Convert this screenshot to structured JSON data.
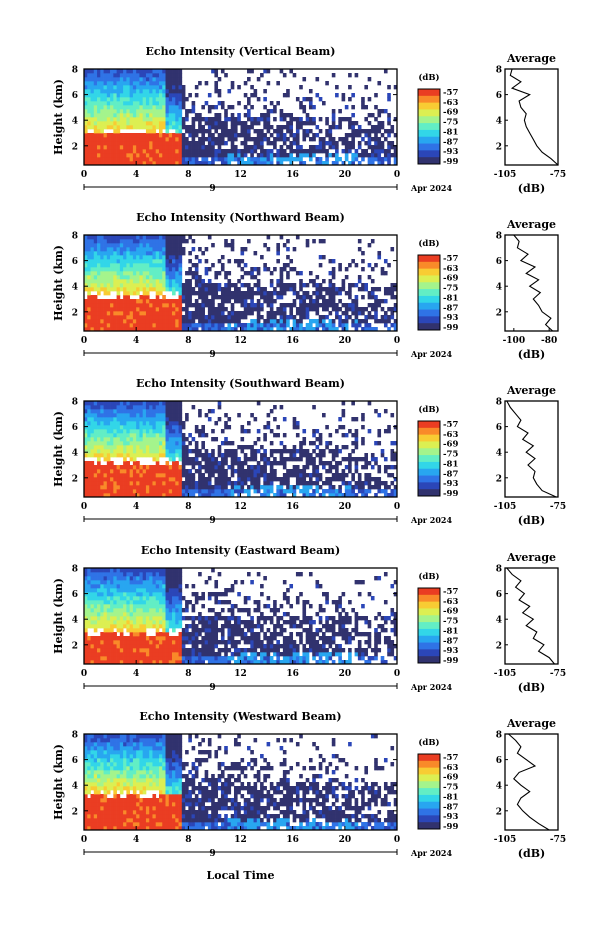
{
  "figure": {
    "x_axis_label": "Local Time",
    "date_label": "Apr 2024",
    "day_label": "9",
    "x_ticks": [
      "0",
      "4",
      "8",
      "12",
      "16",
      "20",
      "0"
    ],
    "y_label": "Height (km)",
    "y_ticks": [
      "2",
      "4",
      "6",
      "8"
    ],
    "colorbar_unit": "(dB)",
    "colorbar_ticks": [
      "-57",
      "-63",
      "-69",
      "-75",
      "-81",
      "-87",
      "-93",
      "-99"
    ],
    "average_title": "Average",
    "average_xlabel": "(dB)"
  },
  "colors": {
    "colormap": [
      "#31326e",
      "#2b46b8",
      "#2f73e6",
      "#28a6f0",
      "#32d6e8",
      "#62eec5",
      "#a4f48c",
      "#dcef52",
      "#f8cc33",
      "#f98a29",
      "#ea3d22"
    ],
    "profile_line": "#000000",
    "missing": "#ffffff"
  },
  "chart_data": [
    {
      "type": "heatmap",
      "title": "Echo Intensity (Vertical Beam)",
      "xlabel": "",
      "ylabel": "Height (km)",
      "xlim": [
        0,
        24
      ],
      "ylim": [
        0.5,
        8
      ],
      "z_range_dB": [
        -99,
        -57
      ],
      "high_echo_end_hour": 7.5,
      "melting_layer_km": 3.1,
      "average_profile": {
        "title": "Average",
        "xlabel": "(dB)",
        "xlim": [
          -105,
          -75
        ],
        "x_ticks": [
          "-105",
          "-75"
        ],
        "height_km": [
          0.5,
          1.0,
          1.5,
          2.0,
          2.5,
          3.0,
          3.5,
          4.0,
          4.5,
          5.0,
          5.5,
          6.0,
          6.5,
          7.0,
          7.5,
          8.0
        ],
        "dB": [
          -75,
          -79,
          -84,
          -87,
          -89,
          -91,
          -93,
          -94,
          -93,
          -96,
          -97,
          -91,
          -101,
          -96,
          -102,
          -101
        ]
      }
    },
    {
      "type": "heatmap",
      "title": "Echo Intensity (Northward Beam)",
      "xlabel": "",
      "ylabel": "Height (km)",
      "xlim": [
        0,
        24
      ],
      "ylim": [
        0.5,
        8
      ],
      "z_range_dB": [
        -99,
        -57
      ],
      "high_echo_end_hour": 7.5,
      "melting_layer_km": 3.3,
      "average_profile": {
        "title": "Average",
        "xlabel": "(dB)",
        "xlim": [
          -105,
          -75
        ],
        "x_ticks": [
          "-100",
          "-80"
        ],
        "height_km": [
          0.5,
          1.0,
          1.5,
          2.0,
          2.5,
          3.0,
          3.5,
          4.0,
          4.5,
          5.0,
          5.5,
          6.0,
          6.5,
          7.0,
          7.5,
          8.0
        ],
        "dB": [
          -78,
          -82,
          -79,
          -84,
          -86,
          -89,
          -85,
          -91,
          -86,
          -93,
          -88,
          -96,
          -92,
          -98,
          -97,
          -100
        ]
      }
    },
    {
      "type": "heatmap",
      "title": "Echo Intensity (Southward Beam)",
      "xlabel": "",
      "ylabel": "Height (km)",
      "xlim": [
        0,
        24
      ],
      "ylim": [
        0.5,
        8
      ],
      "z_range_dB": [
        -99,
        -57
      ],
      "high_echo_end_hour": 7.5,
      "melting_layer_km": 3.3,
      "average_profile": {
        "title": "Average",
        "xlabel": "(dB)",
        "xlim": [
          -105,
          -75
        ],
        "x_ticks": [
          "-105",
          "-75"
        ],
        "height_km": [
          0.5,
          1.0,
          1.5,
          2.0,
          2.5,
          3.0,
          3.5,
          4.0,
          4.5,
          5.0,
          5.5,
          6.0,
          6.5,
          7.0,
          7.5,
          8.0
        ],
        "dB": [
          -76,
          -84,
          -87,
          -89,
          -88,
          -92,
          -88,
          -93,
          -89,
          -95,
          -92,
          -98,
          -96,
          -99,
          -102,
          -104
        ]
      }
    },
    {
      "type": "heatmap",
      "title": "Echo Intensity (Eastward Beam)",
      "xlabel": "",
      "ylabel": "Height (km)",
      "xlim": [
        0,
        24
      ],
      "ylim": [
        0.5,
        8
      ],
      "z_range_dB": [
        -99,
        -57
      ],
      "high_echo_end_hour": 7.5,
      "melting_layer_km": 3.0,
      "average_profile": {
        "title": "Average",
        "xlabel": "(dB)",
        "xlim": [
          -105,
          -75
        ],
        "x_ticks": [
          "-105",
          "-75"
        ],
        "height_km": [
          0.5,
          1.0,
          1.5,
          2.0,
          2.5,
          3.0,
          3.5,
          4.0,
          4.5,
          5.0,
          5.5,
          6.0,
          6.5,
          7.0,
          7.5,
          8.0
        ],
        "dB": [
          -77,
          -80,
          -86,
          -83,
          -89,
          -87,
          -93,
          -89,
          -95,
          -91,
          -97,
          -94,
          -99,
          -96,
          -101,
          -104
        ]
      }
    },
    {
      "type": "heatmap",
      "title": "Echo Intensity (Westward Beam)",
      "xlabel": "",
      "ylabel": "Height (km)",
      "xlim": [
        0,
        24
      ],
      "ylim": [
        0.5,
        8
      ],
      "z_range_dB": [
        -99,
        -57
      ],
      "high_echo_end_hour": 7.5,
      "melting_layer_km": 3.3,
      "average_profile": {
        "title": "Average",
        "xlabel": "(dB)",
        "xlim": [
          -105,
          -75
        ],
        "x_ticks": [
          "-105",
          "-75"
        ],
        "height_km": [
          0.5,
          1.0,
          1.5,
          2.0,
          2.5,
          3.0,
          3.5,
          4.0,
          4.5,
          5.0,
          5.5,
          6.0,
          6.5,
          7.0,
          7.5,
          8.0
        ],
        "dB": [
          -80,
          -86,
          -91,
          -95,
          -98,
          -96,
          -91,
          -96,
          -100,
          -97,
          -88,
          -93,
          -98,
          -96,
          -99,
          -103
        ]
      }
    }
  ]
}
